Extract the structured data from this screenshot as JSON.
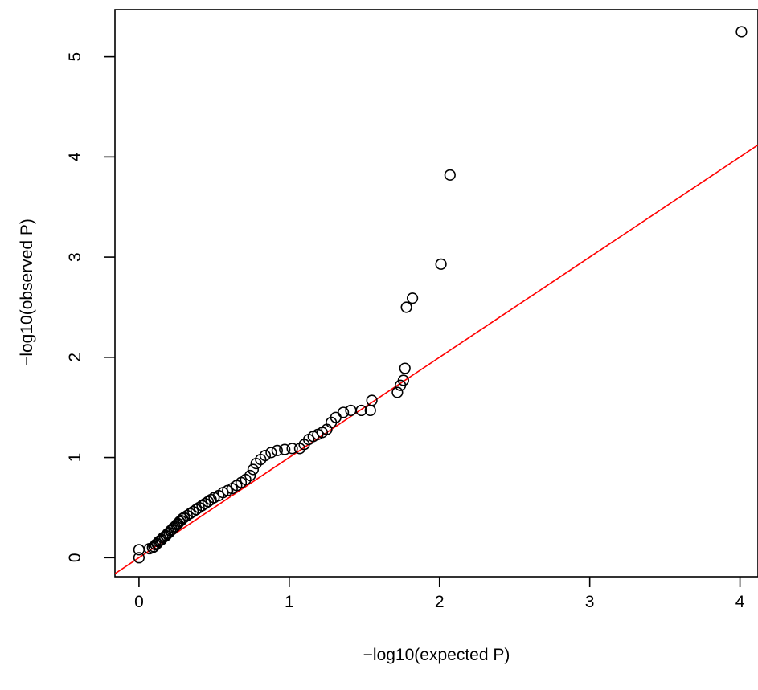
{
  "chart_data": {
    "type": "scatter",
    "title": "",
    "xlabel": "−log10(expected P)",
    "ylabel": "−log10(observed P)",
    "xlim": [
      -0.16,
      4.12
    ],
    "ylim": [
      -0.19,
      5.47
    ],
    "x_ticks": [
      0,
      1,
      2,
      3,
      4
    ],
    "y_ticks": [
      0,
      1,
      2,
      3,
      4,
      5
    ],
    "grid": false,
    "legend": "none",
    "reference_line": {
      "intercept": 0,
      "slope": 1,
      "color": "#ff0000",
      "label": ""
    },
    "point_color": "#000000",
    "points": [
      [
        0.0,
        0.0
      ],
      [
        0.0,
        0.08
      ],
      [
        0.07,
        0.09
      ],
      [
        0.09,
        0.1
      ],
      [
        0.1,
        0.11
      ],
      [
        0.11,
        0.13
      ],
      [
        0.12,
        0.14
      ],
      [
        0.13,
        0.16
      ],
      [
        0.14,
        0.17
      ],
      [
        0.15,
        0.18
      ],
      [
        0.16,
        0.2
      ],
      [
        0.17,
        0.21
      ],
      [
        0.18,
        0.22
      ],
      [
        0.19,
        0.24
      ],
      [
        0.2,
        0.25
      ],
      [
        0.21,
        0.27
      ],
      [
        0.22,
        0.28
      ],
      [
        0.23,
        0.3
      ],
      [
        0.24,
        0.31
      ],
      [
        0.25,
        0.33
      ],
      [
        0.26,
        0.34
      ],
      [
        0.27,
        0.36
      ],
      [
        0.28,
        0.37
      ],
      [
        0.29,
        0.39
      ],
      [
        0.3,
        0.4
      ],
      [
        0.32,
        0.42
      ],
      [
        0.34,
        0.44
      ],
      [
        0.36,
        0.46
      ],
      [
        0.38,
        0.48
      ],
      [
        0.4,
        0.5
      ],
      [
        0.42,
        0.52
      ],
      [
        0.44,
        0.54
      ],
      [
        0.46,
        0.56
      ],
      [
        0.48,
        0.58
      ],
      [
        0.5,
        0.6
      ],
      [
        0.53,
        0.62
      ],
      [
        0.56,
        0.65
      ],
      [
        0.59,
        0.67
      ],
      [
        0.62,
        0.69
      ],
      [
        0.65,
        0.72
      ],
      [
        0.68,
        0.75
      ],
      [
        0.71,
        0.78
      ],
      [
        0.74,
        0.82
      ],
      [
        0.76,
        0.88
      ],
      [
        0.78,
        0.94
      ],
      [
        0.81,
        0.98
      ],
      [
        0.84,
        1.02
      ],
      [
        0.88,
        1.05
      ],
      [
        0.92,
        1.07
      ],
      [
        0.97,
        1.08
      ],
      [
        1.02,
        1.09
      ],
      [
        1.07,
        1.09
      ],
      [
        1.1,
        1.13
      ],
      [
        1.13,
        1.18
      ],
      [
        1.16,
        1.21
      ],
      [
        1.19,
        1.23
      ],
      [
        1.22,
        1.25
      ],
      [
        1.25,
        1.28
      ],
      [
        1.28,
        1.35
      ],
      [
        1.31,
        1.4
      ],
      [
        1.36,
        1.45
      ],
      [
        1.41,
        1.47
      ],
      [
        1.48,
        1.47
      ],
      [
        1.54,
        1.47
      ],
      [
        1.55,
        1.57
      ],
      [
        1.72,
        1.65
      ],
      [
        1.74,
        1.72
      ],
      [
        1.76,
        1.77
      ],
      [
        1.77,
        1.89
      ],
      [
        1.78,
        2.5
      ],
      [
        1.82,
        2.59
      ],
      [
        2.01,
        2.93
      ],
      [
        2.07,
        3.82
      ],
      [
        4.01,
        5.25
      ]
    ]
  }
}
